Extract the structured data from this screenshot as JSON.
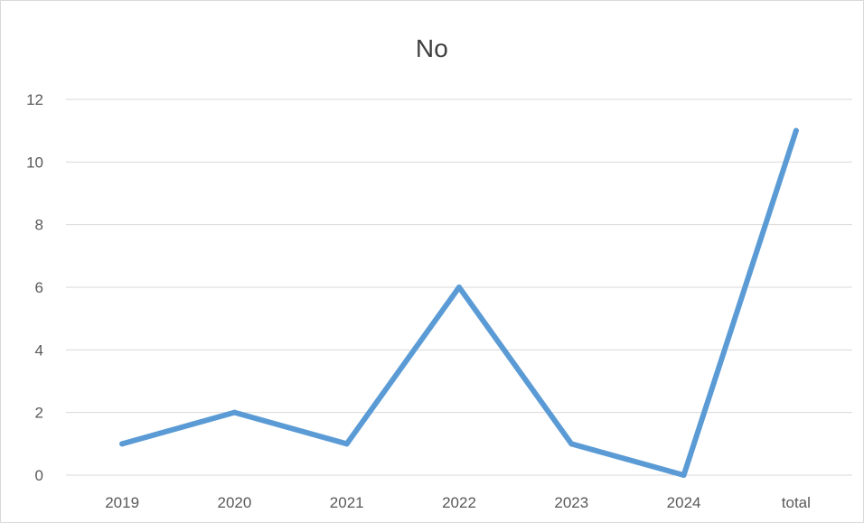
{
  "chart_data": {
    "type": "line",
    "title": "No",
    "categories": [
      "2019",
      "2020",
      "2021",
      "2022",
      "2023",
      "2024",
      "total"
    ],
    "series": [
      {
        "values": [
          1,
          2,
          1,
          6,
          1,
          0,
          11
        ]
      }
    ],
    "ylim": [
      0,
      12
    ],
    "yticks": [
      0,
      2,
      4,
      6,
      8,
      10,
      12
    ],
    "grid": true,
    "legend": "none",
    "colors": {
      "line": "#5b9bd5",
      "grid": "#d9d9d9",
      "text": "#595959",
      "title": "#404040"
    }
  }
}
